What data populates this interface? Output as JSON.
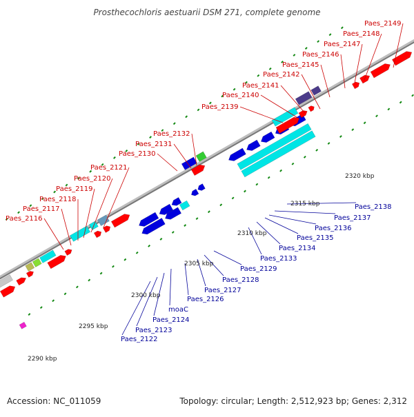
{
  "title": "Prosthecochloris aestuarii DSM 271, complete genome",
  "footer": {
    "accession": "Accession: NC_011059",
    "summary": "Topology: circular; Length: 2,512,923 bp; Genes: 2,312"
  },
  "colors": {
    "forward_gene": "#ff0000",
    "reverse_gene": "#0000dd",
    "cds_cyan": "#00e5e5",
    "tick": "#118811",
    "backbone": "#888888",
    "forward_label": "#cc0000",
    "reverse_label": "#000099"
  },
  "kbp_markers": [
    "2290 kbp",
    "2295 kbp",
    "2300 kbp",
    "2305 kbp",
    "2310 kbp",
    "2315 kbp",
    "2320 kbp"
  ],
  "forward_labels": [
    "Paes_2116",
    "Paes_2117",
    "Paes_2118",
    "Paes_2119",
    "Paes_2120",
    "Paes_2121",
    "Paes_2130",
    "Paes_2131",
    "Paes_2132",
    "Paes_2139",
    "Paes_2140",
    "Paes_2141",
    "Paes_2142",
    "Paes_2145",
    "Paes_2146",
    "Paes_2147",
    "Paes_2148",
    "Paes_2149"
  ],
  "reverse_labels": [
    "Paes_2122",
    "Paes_2123",
    "Paes_2124",
    "moaC",
    "Paes_2126",
    "Paes_2127",
    "Paes_2128",
    "Paes_2129",
    "Paes_2133",
    "Paes_2134",
    "Paes_2135",
    "Paes_2136",
    "Paes_2137",
    "Paes_2138"
  ]
}
